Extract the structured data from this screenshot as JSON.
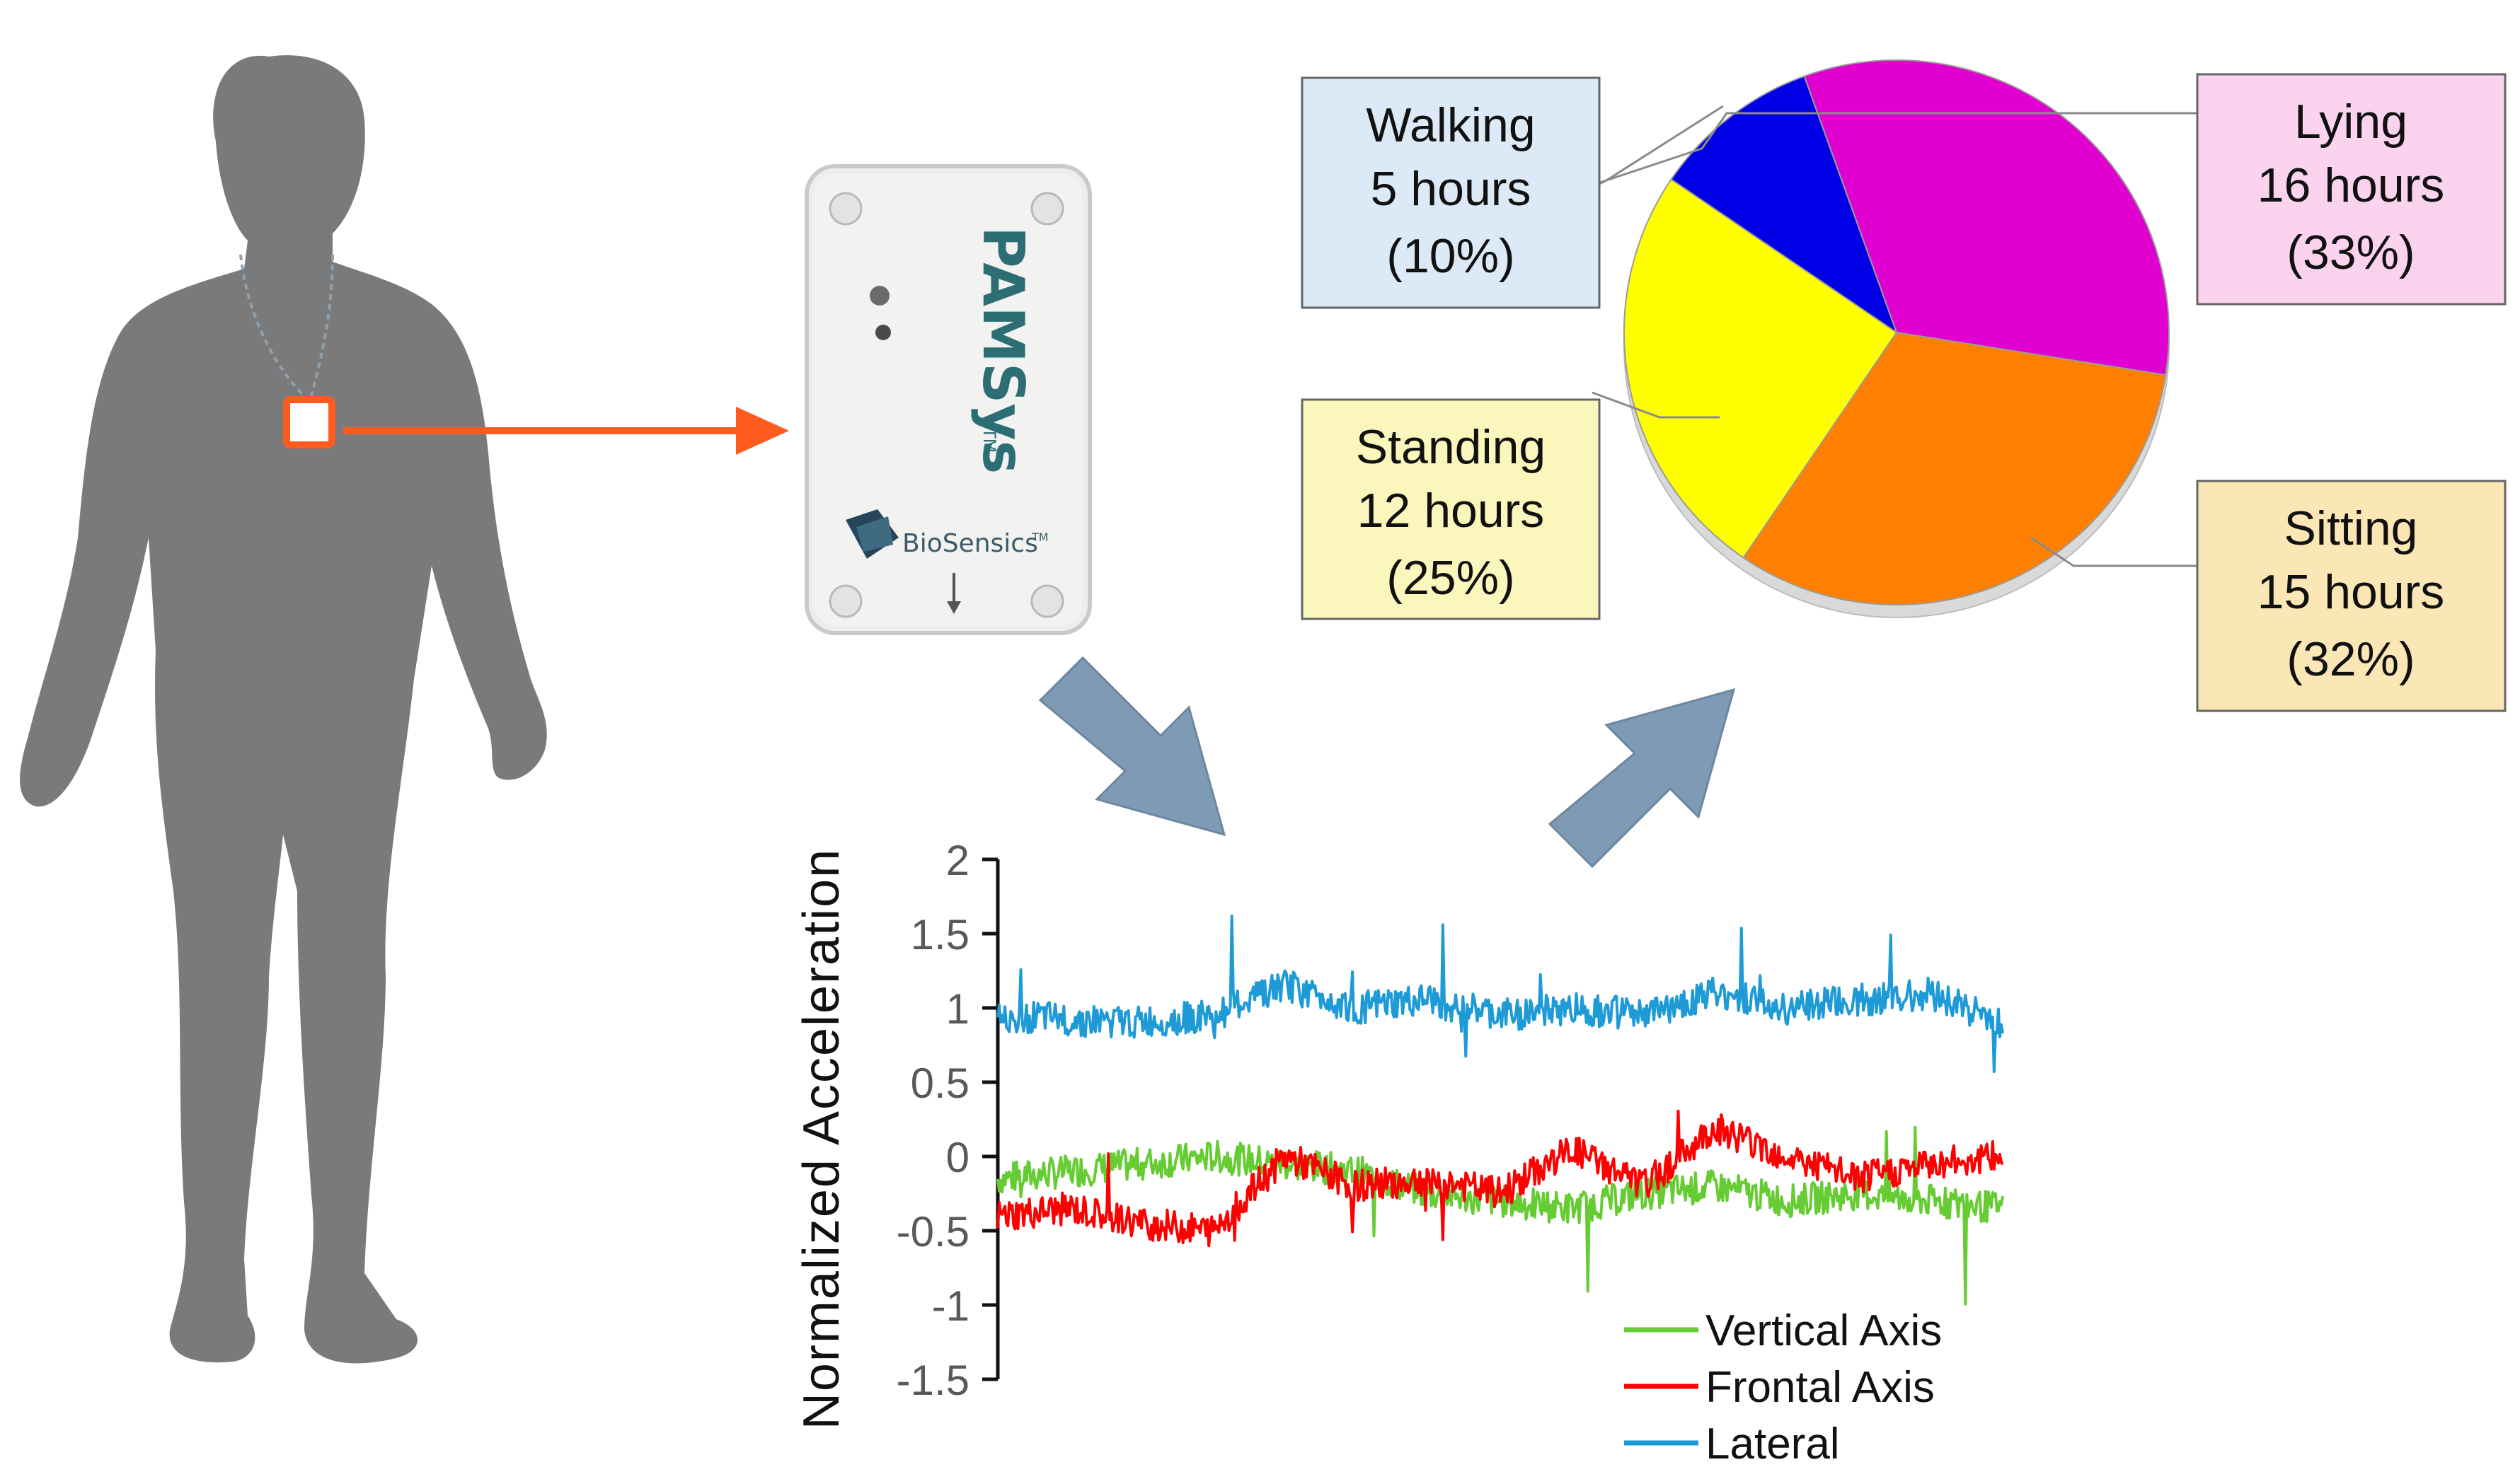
{
  "colors": {
    "silhouette": "#7a7a7a",
    "sensor_marker": "#ff5a1f",
    "arrow_red": "#ff5a1f",
    "arrow_steel": "#7f9ab4",
    "vertical_axis": "#66cc33",
    "frontal_axis": "#ff0000",
    "lateral_axis": "#1e9bd7",
    "axis_text": "#595959",
    "walking": "#0000e6",
    "lying": "#e000d0",
    "sitting": "#ff8000",
    "standing": "#ffff00",
    "walking_box": "#dbeaf6",
    "lying_box": "#fbd3ef",
    "sitting_box": "#fbe7b6",
    "standing_box": "#fbf6bb"
  },
  "device": {
    "brand": "PAMSys",
    "brand_tm": "TM",
    "maker": "BioSensics",
    "maker_tm": "TM"
  },
  "pie": {
    "slices": [
      {
        "key": "lying",
        "label": "Lying",
        "hours_text": "16 hours",
        "pct_text": "(33%)",
        "percent": 33
      },
      {
        "key": "sitting",
        "label": "Sitting",
        "hours_text": "15 hours",
        "pct_text": "(32%)",
        "percent": 32
      },
      {
        "key": "standing",
        "label": "Standing",
        "hours_text": "12 hours",
        "pct_text": "(25%)",
        "percent": 25
      },
      {
        "key": "walking",
        "label": "Walking",
        "hours_text": "5 hours",
        "pct_text": "(10%)",
        "percent": 10
      }
    ]
  },
  "chart_data": {
    "type": "line",
    "ylabel": "Normalized Acceleration",
    "ylim": [
      -1.5,
      2
    ],
    "yticks": [
      "2",
      "1.5",
      "1",
      "0.5",
      "0",
      "-0.5",
      "-1",
      "-1.5"
    ],
    "x": [
      0,
      50,
      100,
      150,
      200,
      250,
      300,
      350,
      400,
      450,
      500,
      550,
      600,
      650,
      700
    ],
    "series": [
      {
        "name": "Vertical Axis",
        "key": "vertical_axis",
        "values": [
          -0.15,
          -0.1,
          -0.05,
          0.0,
          -0.05,
          -0.1,
          -0.25,
          -0.3,
          -0.35,
          -0.25,
          -0.2,
          -0.3,
          -0.25,
          -0.3,
          -0.35
        ]
      },
      {
        "name": "Frontal Axis",
        "key": "frontal_axis",
        "values": [
          -0.4,
          -0.35,
          -0.45,
          -0.5,
          0.0,
          -0.2,
          -0.15,
          -0.25,
          0.05,
          -0.2,
          0.2,
          0.0,
          -0.15,
          -0.05,
          0.0
        ]
      },
      {
        "name": "Lateral",
        "key": "lateral_axis",
        "values": [
          0.95,
          0.92,
          0.9,
          0.95,
          1.15,
          1.0,
          1.05,
          0.95,
          1.0,
          0.95,
          1.1,
          1.0,
          1.05,
          1.1,
          0.9
        ]
      }
    ]
  }
}
